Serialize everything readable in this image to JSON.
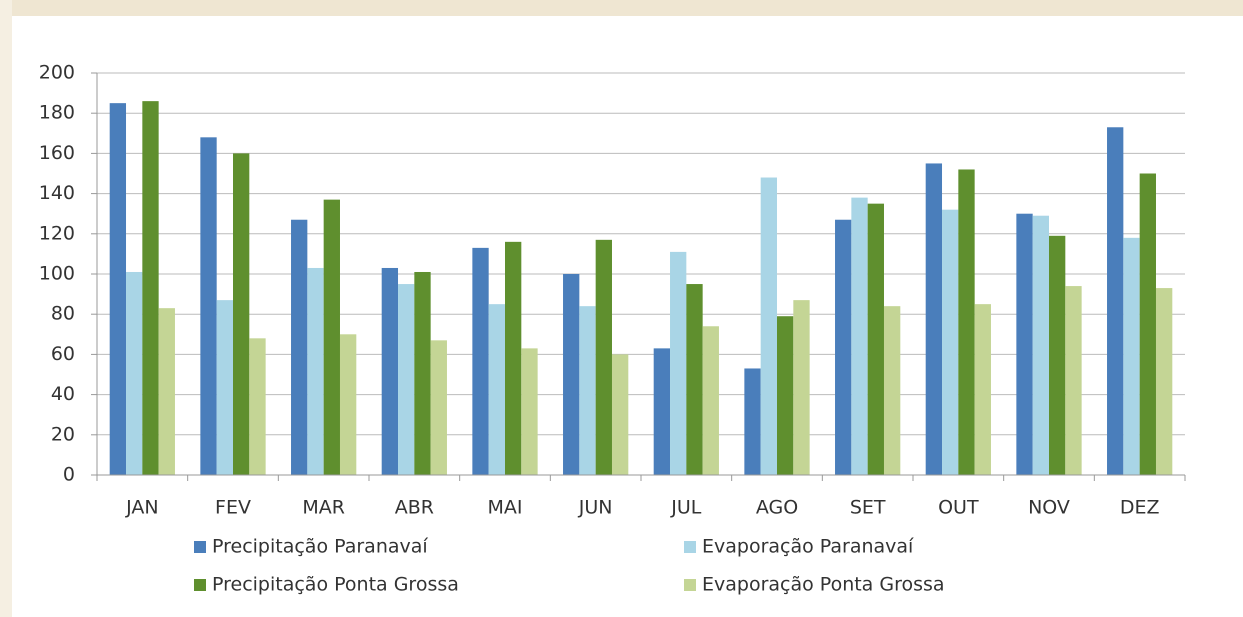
{
  "chart_data": {
    "type": "bar",
    "categories": [
      "JAN",
      "FEV",
      "MAR",
      "ABR",
      "MAI",
      "JUN",
      "JUL",
      "AGO",
      "SET",
      "OUT",
      "NOV",
      "DEZ"
    ],
    "series": [
      {
        "name": "Precipitação Paranavaí",
        "color": "#4a7ebb",
        "values": [
          185,
          168,
          127,
          103,
          113,
          100,
          63,
          53,
          127,
          155,
          130,
          173
        ]
      },
      {
        "name": "Evaporação Paranavaí",
        "color": "#a9d5e6",
        "values": [
          101,
          87,
          103,
          95,
          85,
          84,
          111,
          148,
          138,
          132,
          129,
          118
        ]
      },
      {
        "name": "Precipitação Ponta Grossa",
        "color": "#5f8f2e",
        "values": [
          186,
          160,
          137,
          101,
          116,
          117,
          95,
          79,
          135,
          152,
          119,
          150
        ]
      },
      {
        "name": "Evaporação Ponta Grossa",
        "color": "#c4d595",
        "values": [
          83,
          68,
          70,
          67,
          63,
          60,
          74,
          87,
          84,
          85,
          94,
          93
        ]
      }
    ],
    "ylim": [
      0,
      200
    ],
    "yticks": [
      0,
      20,
      40,
      60,
      80,
      100,
      120,
      140,
      160,
      180,
      200
    ],
    "grid": true,
    "legend": "bottom"
  }
}
